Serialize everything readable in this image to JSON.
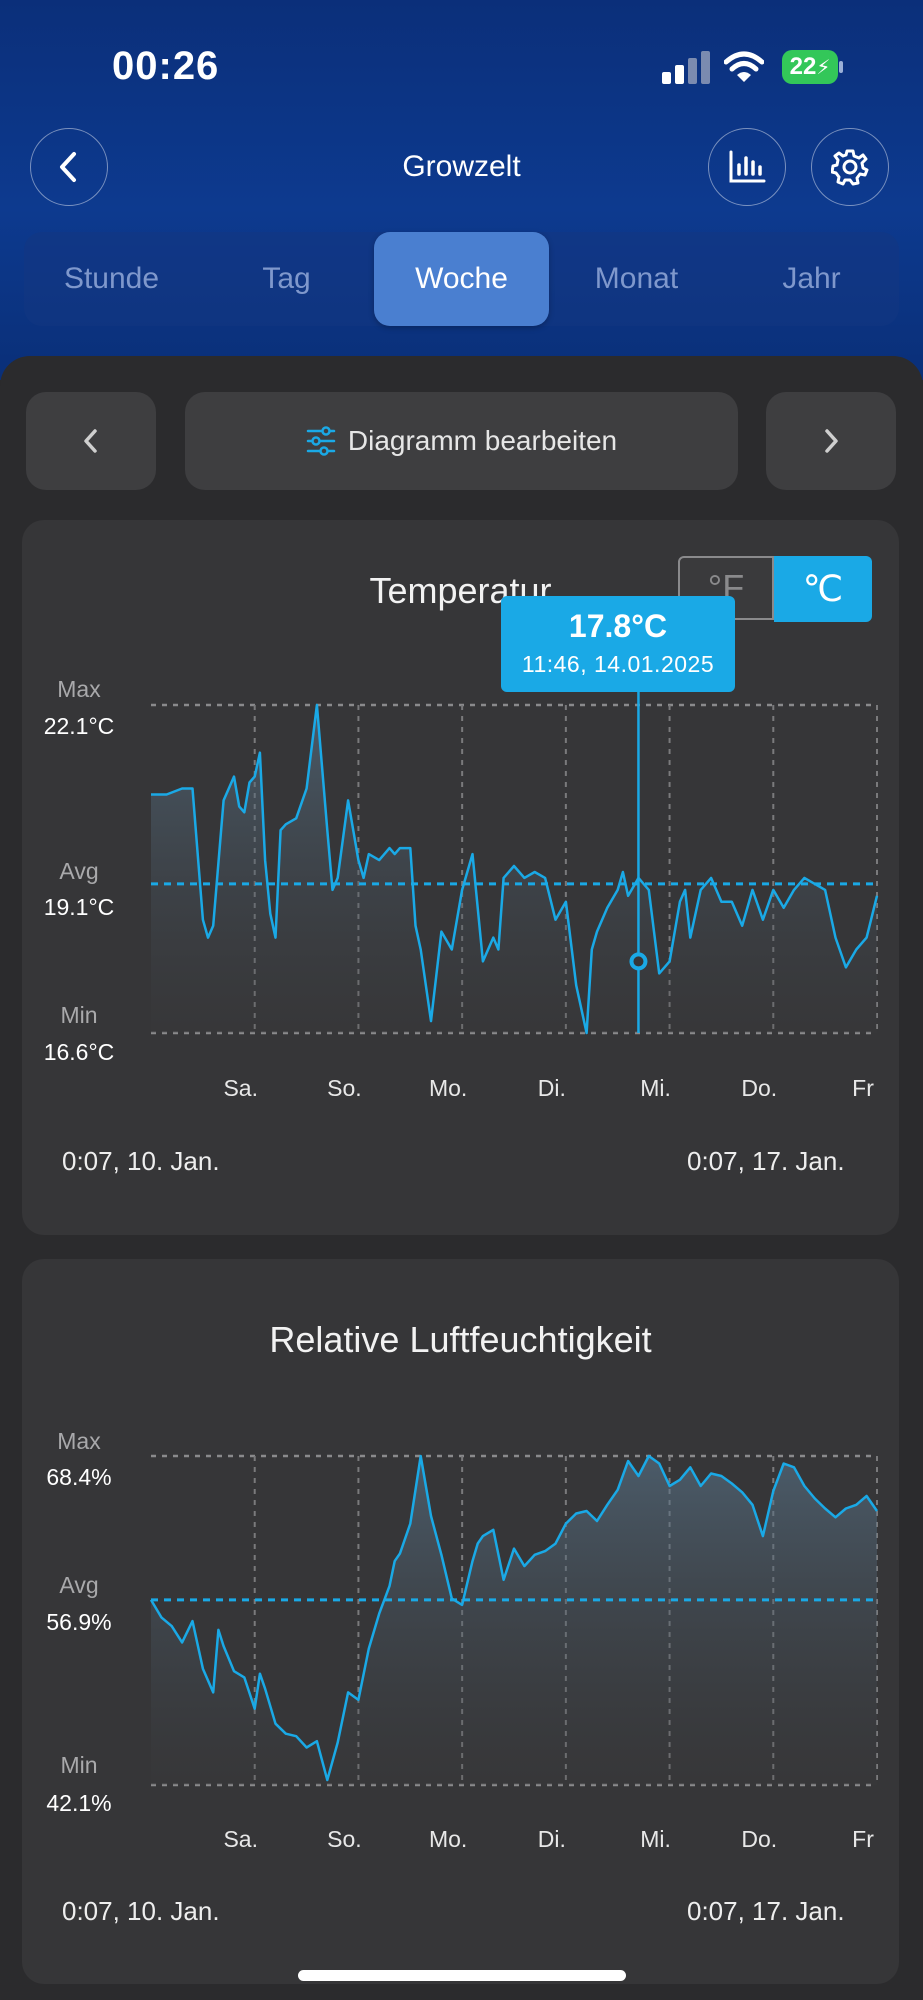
{
  "status": {
    "time": "00:26",
    "battery": "22"
  },
  "header": {
    "title": "Growzelt"
  },
  "tabs": [
    "Stunde",
    "Tag",
    "Woche",
    "Monat",
    "Jahr"
  ],
  "active_tab": 2,
  "toolbar": {
    "edit_label": "Diagramm bearbeiten"
  },
  "colors": {
    "accent": "#1aa9e6",
    "header_blue": "#0d3a8f",
    "active_tab": "#4a7fd0",
    "card": "#363638"
  },
  "temperature_card": {
    "title": "Temperatur",
    "unit_f": "°F",
    "unit_c": "℃",
    "selected_unit": "C",
    "tooltip_value": "17.8°C",
    "tooltip_time": "11:46,  14.01.2025",
    "max_label": "Max",
    "max_value": "22.1°C",
    "avg_label": "Avg",
    "avg_value": "19.1°C",
    "min_label": "Min",
    "min_value": "16.6°C",
    "range_start": "0:07,  10. Jan.",
    "range_end": "0:07,  17. Jan."
  },
  "humidity_card": {
    "title": "Relative Luftfeuchtigkeit",
    "max_label": "Max",
    "max_value": "68.4%",
    "avg_label": "Avg",
    "avg_value": "56.9%",
    "min_label": "Min",
    "min_value": "42.1%",
    "range_start": "0:07,  10. Jan.",
    "range_end": "0:07,  17. Jan."
  },
  "chart_data": [
    {
      "type": "area",
      "title": "Temperatur",
      "ylabel": "°C",
      "ylim": [
        16.6,
        22.1
      ],
      "avg": 19.1,
      "x_ticks": [
        "Sa.",
        "So.",
        "Mo.",
        "Di.",
        "Mi.",
        "Do.",
        "Fr"
      ],
      "x": [
        0.0,
        0.15,
        0.3,
        0.4,
        0.5,
        0.55,
        0.6,
        0.7,
        0.8,
        0.85,
        0.9,
        0.95,
        1.0,
        1.05,
        1.1,
        1.15,
        1.2,
        1.25,
        1.3,
        1.4,
        1.5,
        1.6,
        1.7,
        1.75,
        1.8,
        1.9,
        2.0,
        2.05,
        2.1,
        2.2,
        2.3,
        2.35,
        2.4,
        2.5,
        2.55,
        2.6,
        2.7,
        2.8,
        2.9,
        3.0,
        3.1,
        3.15,
        3.2,
        3.3,
        3.35,
        3.4,
        3.5,
        3.6,
        3.7,
        3.8,
        3.9,
        4.0,
        4.1,
        4.2,
        4.25,
        4.3,
        4.4,
        4.5,
        4.55,
        4.6,
        4.7,
        4.8,
        4.9,
        5.0,
        5.1,
        5.15,
        5.2,
        5.3,
        5.4,
        5.5,
        5.6,
        5.7,
        5.8,
        5.9,
        6.0,
        6.1,
        6.2,
        6.3,
        6.4,
        6.5,
        6.6,
        6.7,
        6.8,
        6.9,
        7.0
      ],
      "series": [
        {
          "values": [
            20.6,
            20.6,
            20.7,
            20.7,
            18.5,
            18.2,
            18.4,
            20.5,
            20.9,
            20.4,
            20.3,
            20.8,
            20.9,
            21.3,
            19.5,
            18.6,
            18.2,
            20.0,
            20.1,
            20.2,
            20.7,
            22.1,
            20.0,
            19.0,
            19.2,
            20.5,
            19.5,
            19.2,
            19.6,
            19.5,
            19.7,
            19.6,
            19.7,
            19.7,
            18.4,
            18.0,
            16.8,
            18.3,
            18.0,
            19.0,
            19.6,
            18.7,
            17.8,
            18.2,
            18.0,
            19.2,
            19.4,
            19.2,
            19.3,
            19.2,
            18.5,
            18.8,
            17.4,
            16.6,
            18.0,
            18.3,
            18.7,
            19.0,
            19.3,
            18.9,
            19.2,
            19.0,
            17.6,
            17.8,
            18.8,
            19.0,
            18.2,
            19.0,
            19.2,
            18.8,
            18.8,
            18.4,
            19.0,
            18.5,
            19.0,
            18.7,
            19.0,
            19.2,
            19.1,
            19.0,
            18.2,
            17.7,
            18.0,
            18.2,
            18.9
          ]
        }
      ],
      "selected_point": {
        "value": 17.8,
        "label": "11:46,  14.01.2025"
      }
    },
    {
      "type": "area",
      "title": "Relative Luftfeuchtigkeit",
      "ylabel": "%",
      "ylim": [
        42.1,
        68.4
      ],
      "avg": 56.9,
      "x_ticks": [
        "Sa.",
        "So.",
        "Mo.",
        "Di.",
        "Mi.",
        "Do.",
        "Fr"
      ],
      "x": [
        0.0,
        0.1,
        0.2,
        0.3,
        0.4,
        0.5,
        0.6,
        0.65,
        0.7,
        0.8,
        0.9,
        1.0,
        1.05,
        1.1,
        1.2,
        1.3,
        1.4,
        1.5,
        1.6,
        1.7,
        1.8,
        1.9,
        2.0,
        2.1,
        2.2,
        2.3,
        2.35,
        2.4,
        2.5,
        2.6,
        2.7,
        2.8,
        2.9,
        3.0,
        3.1,
        3.15,
        3.2,
        3.3,
        3.4,
        3.5,
        3.6,
        3.7,
        3.8,
        3.9,
        4.0,
        4.1,
        4.2,
        4.3,
        4.4,
        4.5,
        4.6,
        4.7,
        4.8,
        4.9,
        5.0,
        5.1,
        5.2,
        5.3,
        5.4,
        5.5,
        5.6,
        5.7,
        5.8,
        5.9,
        6.0,
        6.1,
        6.2,
        6.3,
        6.4,
        6.5,
        6.6,
        6.7,
        6.8,
        6.9,
        7.0
      ],
      "series": [
        {
          "values": [
            56.9,
            55.5,
            54.8,
            53.5,
            55.2,
            51.4,
            49.5,
            54.5,
            53.2,
            51.2,
            50.7,
            48.2,
            51.0,
            49.8,
            47.0,
            46.2,
            46.0,
            45.1,
            45.6,
            42.5,
            45.5,
            49.5,
            48.9,
            53.0,
            55.8,
            58.0,
            60.0,
            60.6,
            63.0,
            68.4,
            63.6,
            60.5,
            57.0,
            56.5,
            60.0,
            61.4,
            62.0,
            62.5,
            58.5,
            61.0,
            59.6,
            60.5,
            60.8,
            61.4,
            63.0,
            63.8,
            64.0,
            63.2,
            64.5,
            65.7,
            68.0,
            66.8,
            68.4,
            67.8,
            66.0,
            66.5,
            67.5,
            66.0,
            67.0,
            66.8,
            66.2,
            65.5,
            64.5,
            62.0,
            65.6,
            67.8,
            67.5,
            66.0,
            65.0,
            64.2,
            63.5,
            64.2,
            64.5,
            65.2,
            64.0
          ]
        }
      ]
    }
  ]
}
